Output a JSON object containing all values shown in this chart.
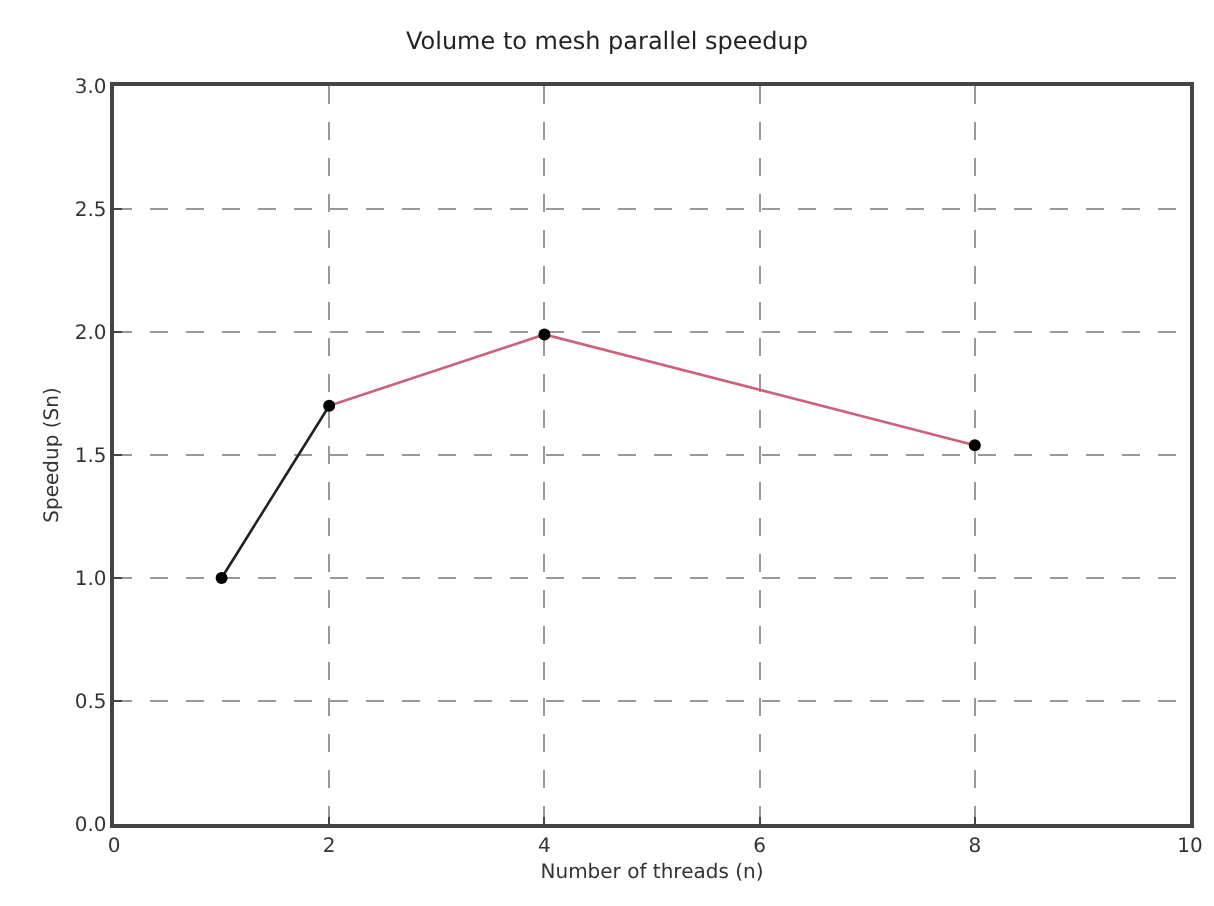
{
  "chart_data": {
    "type": "line",
    "title": "Volume to mesh parallel speedup",
    "xlabel": "Number of threads (n)",
    "ylabel": "Speedup (Sn)",
    "series": [
      {
        "color": "#222222",
        "x": [
          1,
          2
        ],
        "values": [
          1.0,
          1.7
        ],
        "marker": "none"
      },
      {
        "color": "#d0607a",
        "x": [
          2,
          4,
          8
        ],
        "values": [
          1.7,
          1.99,
          1.54
        ],
        "marker": "none"
      },
      {
        "type": "scatter",
        "color": "#000000",
        "x": [
          1,
          2,
          4,
          8
        ],
        "values": [
          1.0,
          1.7,
          1.99,
          1.54
        ],
        "marker": "circle"
      }
    ],
    "xlim": [
      0,
      10
    ],
    "xticks": [
      0,
      2,
      4,
      6,
      8,
      10
    ],
    "ylim": [
      0,
      3
    ],
    "yticks": [
      {
        "value": 0,
        "label": "0.0"
      },
      {
        "value": 0.5,
        "label": "0.5"
      },
      {
        "value": 1,
        "label": "1.0"
      },
      {
        "value": 1.5,
        "label": "1.5"
      },
      {
        "value": 2,
        "label": "2.0"
      },
      {
        "value": 2.5,
        "label": "2.5"
      },
      {
        "value": 3,
        "label": "3.0"
      }
    ],
    "grid": true,
    "line_style": "solid"
  }
}
